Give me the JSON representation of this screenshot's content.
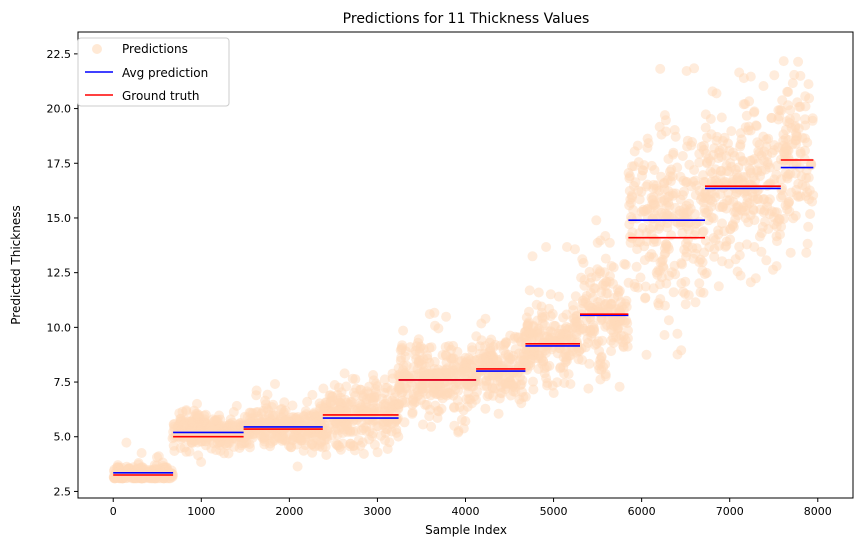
{
  "chart_data": {
    "type": "scatter",
    "title": "Predictions for 11 Thickness Values",
    "xlabel": "Sample Index",
    "ylabel": "Predicted Thickness",
    "xlim": [
      -400,
      8400
    ],
    "ylim": [
      2.2,
      23.5
    ],
    "x_ticks": [
      0,
      1000,
      2000,
      3000,
      4000,
      5000,
      6000,
      7000,
      8000
    ],
    "y_ticks": [
      2.5,
      5.0,
      7.5,
      10.0,
      12.5,
      15.0,
      17.5,
      20.0,
      22.5
    ],
    "x_tick_labels": [
      "0",
      "1000",
      "2000",
      "3000",
      "4000",
      "5000",
      "6000",
      "7000",
      "8000"
    ],
    "y_tick_labels": [
      "2.5",
      "5.0",
      "7.5",
      "10.0",
      "12.5",
      "15.0",
      "17.5",
      "20.0",
      "22.5"
    ],
    "grid": false,
    "legend": {
      "placement": "top-left",
      "entries": [
        {
          "label": "Predictions",
          "marker": "circle",
          "color": "#ffdab9"
        },
        {
          "label": "Avg prediction",
          "marker": "line",
          "color": "#0000ff"
        },
        {
          "label": "Ground truth",
          "marker": "line",
          "color": "#ff0000"
        }
      ]
    },
    "series": [
      {
        "name": "Avg prediction",
        "color": "#0000ff",
        "segments": [
          {
            "x": [
              0,
              680
            ],
            "y": 3.35
          },
          {
            "x": [
              680,
              1480
            ],
            "y": 5.2
          },
          {
            "x": [
              1480,
              2380
            ],
            "y": 5.45
          },
          {
            "x": [
              2380,
              3240
            ],
            "y": 5.85
          },
          {
            "x": [
              3240,
              4120
            ],
            "y": 7.6
          },
          {
            "x": [
              4120,
              4680
            ],
            "y": 8.0
          },
          {
            "x": [
              4680,
              5300
            ],
            "y": 9.15
          },
          {
            "x": [
              5300,
              5850
            ],
            "y": 10.55
          },
          {
            "x": [
              5850,
              6720
            ],
            "y": 14.9
          },
          {
            "x": [
              6720,
              7580
            ],
            "y": 16.35
          },
          {
            "x": [
              7580,
              7950
            ],
            "y": 17.3
          }
        ]
      },
      {
        "name": "Ground truth",
        "color": "#ff0000",
        "segments": [
          {
            "x": [
              0,
              680
            ],
            "y": 3.25
          },
          {
            "x": [
              680,
              1480
            ],
            "y": 5.0
          },
          {
            "x": [
              1480,
              2380
            ],
            "y": 5.35
          },
          {
            "x": [
              2380,
              3240
            ],
            "y": 6.0
          },
          {
            "x": [
              3240,
              4120
            ],
            "y": 7.6
          },
          {
            "x": [
              4120,
              4680
            ],
            "y": 8.1
          },
          {
            "x": [
              4680,
              5300
            ],
            "y": 9.25
          },
          {
            "x": [
              5300,
              5850
            ],
            "y": 10.6
          },
          {
            "x": [
              5850,
              6720
            ],
            "y": 14.1
          },
          {
            "x": [
              6720,
              7580
            ],
            "y": 16.45
          },
          {
            "x": [
              7580,
              7950
            ],
            "y": 17.65
          }
        ]
      },
      {
        "name": "Predictions",
        "color": "#ffdab9",
        "clusters": [
          {
            "x": [
              0,
              680
            ],
            "center": 3.3,
            "spread": 0.2,
            "outlier_max": 5.0
          },
          {
            "x": [
              680,
              1480
            ],
            "center": 5.2,
            "spread": 0.4,
            "outlier_max": 6.5
          },
          {
            "x": [
              1480,
              2380
            ],
            "center": 5.45,
            "spread": 0.45,
            "outlier_max": 7.5
          },
          {
            "x": [
              2380,
              3240
            ],
            "center": 5.9,
            "spread": 0.8,
            "outlier_max": 8.0
          },
          {
            "x": [
              3240,
              4120
            ],
            "center": 7.6,
            "spread": 0.9,
            "outlier_max": 11.0
          },
          {
            "x": [
              4120,
              4680
            ],
            "center": 8.0,
            "spread": 0.8,
            "outlier_max": 10.5
          },
          {
            "x": [
              4680,
              5300
            ],
            "center": 9.15,
            "spread": 0.9,
            "outlier_max": 14.0
          },
          {
            "x": [
              5300,
              5850
            ],
            "center": 10.6,
            "spread": 1.3,
            "outlier_max": 16.0
          },
          {
            "x": [
              5850,
              6720
            ],
            "center": 14.9,
            "spread": 2.2,
            "outlier_max": 22.0
          },
          {
            "x": [
              6720,
              7580
            ],
            "center": 16.4,
            "spread": 1.8,
            "outlier_max": 22.0
          },
          {
            "x": [
              7580,
              7950
            ],
            "center": 17.4,
            "spread": 2.0,
            "outlier_max": 22.5
          }
        ]
      }
    ]
  }
}
